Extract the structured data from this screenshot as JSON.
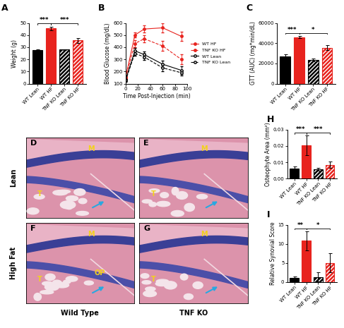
{
  "chart_data": [
    {
      "panel": "A",
      "type": "bar",
      "ylabel": "Weight (g)",
      "categories": [
        "WT Lean",
        "WT HF",
        "TNF KO Lean",
        "TNF KO HF"
      ],
      "values": [
        27.5,
        45.5,
        28,
        35.5
      ],
      "errors": [
        0.8,
        1.5,
        0.5,
        2.2
      ],
      "colors": [
        "#000000",
        "#e8231e",
        "#000000",
        "#e8231e"
      ],
      "ylim": [
        0,
        50
      ],
      "yticks": [
        0,
        10,
        20,
        30,
        40,
        50
      ],
      "significance": [
        {
          "from": "WT Lean",
          "to": "WT HF",
          "label": "***"
        },
        {
          "from": "WT HF",
          "to": "TNF KO HF",
          "label": "***"
        }
      ]
    },
    {
      "panel": "B",
      "type": "line",
      "xlabel": "Time Post-Injection (min)",
      "ylabel": "Blood Glucose (mg/dL)",
      "x": [
        0,
        15,
        30,
        60,
        90
      ],
      "series": [
        {
          "name": "WT HF",
          "color": "#e8231e",
          "line_style": "solid",
          "marker": "filled_circle",
          "values": [
            150,
            500,
            550,
            560,
            490
          ],
          "errors": [
            10,
            20,
            30,
            40,
            40
          ]
        },
        {
          "name": "TNF KO HF",
          "color": "#e8231e",
          "line_style": "dashed",
          "marker": "filled_circle",
          "values": [
            150,
            430,
            470,
            410,
            300
          ],
          "errors": [
            10,
            30,
            30,
            40,
            40
          ]
        },
        {
          "name": "WT Lean",
          "color": "#000000",
          "line_style": "solid",
          "marker": "open_circle",
          "values": [
            130,
            370,
            340,
            260,
            210
          ],
          "errors": [
            10,
            25,
            25,
            30,
            30
          ]
        },
        {
          "name": "TNF KO Lean",
          "color": "#000000",
          "line_style": "dashed",
          "marker": "open_circle",
          "values": [
            125,
            350,
            320,
            230,
            190
          ],
          "errors": [
            10,
            20,
            25,
            25,
            20
          ]
        }
      ],
      "xlim": [
        0,
        100
      ],
      "xticks": [
        0,
        20,
        40,
        60,
        80,
        100
      ],
      "ylim": [
        100,
        600
      ],
      "yticks": [
        100,
        200,
        300,
        400,
        500,
        600
      ],
      "legend": "right"
    },
    {
      "panel": "C",
      "type": "bar",
      "ylabel": "GTT (AUC) (mg*min/dL)",
      "categories": [
        "WT Lean",
        "WT HF",
        "TNF KO Lean",
        "TNF KO HF"
      ],
      "values": [
        27000,
        46000,
        23500,
        35500
      ],
      "errors": [
        2000,
        1200,
        1200,
        2500
      ],
      "colors": [
        "#000000",
        "#e8231e",
        "#000000",
        "#e8231e"
      ],
      "ylim": [
        0,
        60000
      ],
      "yticks": [
        0,
        20000,
        40000,
        60000
      ],
      "significance": [
        {
          "from": "WT Lean",
          "to": "WT HF",
          "label": "***"
        },
        {
          "from": "WT HF",
          "to": "TNF KO HF",
          "label": "*"
        }
      ]
    },
    {
      "panel": "H",
      "type": "bar",
      "ylabel": "Osteophyte Area (mm²)",
      "categories": [
        "WT Lean",
        "WT HF",
        "TNF KO Lean",
        "TNF KO HF"
      ],
      "values": [
        0.006,
        0.0205,
        0.0058,
        0.0085
      ],
      "errors": [
        0.0015,
        0.006,
        0.0008,
        0.002
      ],
      "colors": [
        "#000000",
        "#e8231e",
        "#000000",
        "#e8231e"
      ],
      "ylim": [
        0,
        0.03
      ],
      "yticks": [
        {
          "value": 0,
          "label": "0.00"
        },
        {
          "value": 0.01,
          "label": "0.01"
        },
        {
          "value": 0.02,
          "label": "0.02"
        },
        {
          "value": 0.03,
          "label": "0.03"
        }
      ],
      "significance": [
        {
          "from": "WT Lean",
          "to": "WT HF",
          "label": "***"
        },
        {
          "from": "WT HF",
          "to": "TNF KO HF",
          "label": "***"
        }
      ]
    },
    {
      "panel": "I",
      "type": "bar",
      "ylabel": "Relative Synovial Score",
      "categories": [
        "WT Lean",
        "WT HF",
        "TNF KO Lean",
        "TNF KO HF"
      ],
      "values": [
        1,
        10.8,
        1.3,
        5
      ],
      "errors": [
        0.5,
        2.5,
        1.2,
        2.5
      ],
      "colors": [
        "#000000",
        "#e8231e",
        "#000000",
        "#e8231e"
      ],
      "ylim": [
        0,
        15
      ],
      "yticks": [
        0,
        5,
        10,
        15
      ],
      "significance": [
        {
          "from": "WT Lean",
          "to": "WT HF",
          "label": "**"
        },
        {
          "from": "WT HF",
          "to": "TNF KO HF",
          "label": "*"
        }
      ]
    }
  ],
  "images": {
    "row_labels": [
      "Lean",
      "High Fat"
    ],
    "column_labels": [
      "Wild Type",
      "TNF KO"
    ],
    "panels": [
      {
        "panel": "D",
        "labels": [
          "M",
          "T"
        ]
      },
      {
        "panel": "E",
        "labels": [
          "M",
          "T"
        ]
      },
      {
        "panel": "F",
        "labels": [
          "M",
          "T",
          "OP"
        ]
      },
      {
        "panel": "G",
        "labels": [
          "M",
          "T"
        ]
      }
    ]
  }
}
